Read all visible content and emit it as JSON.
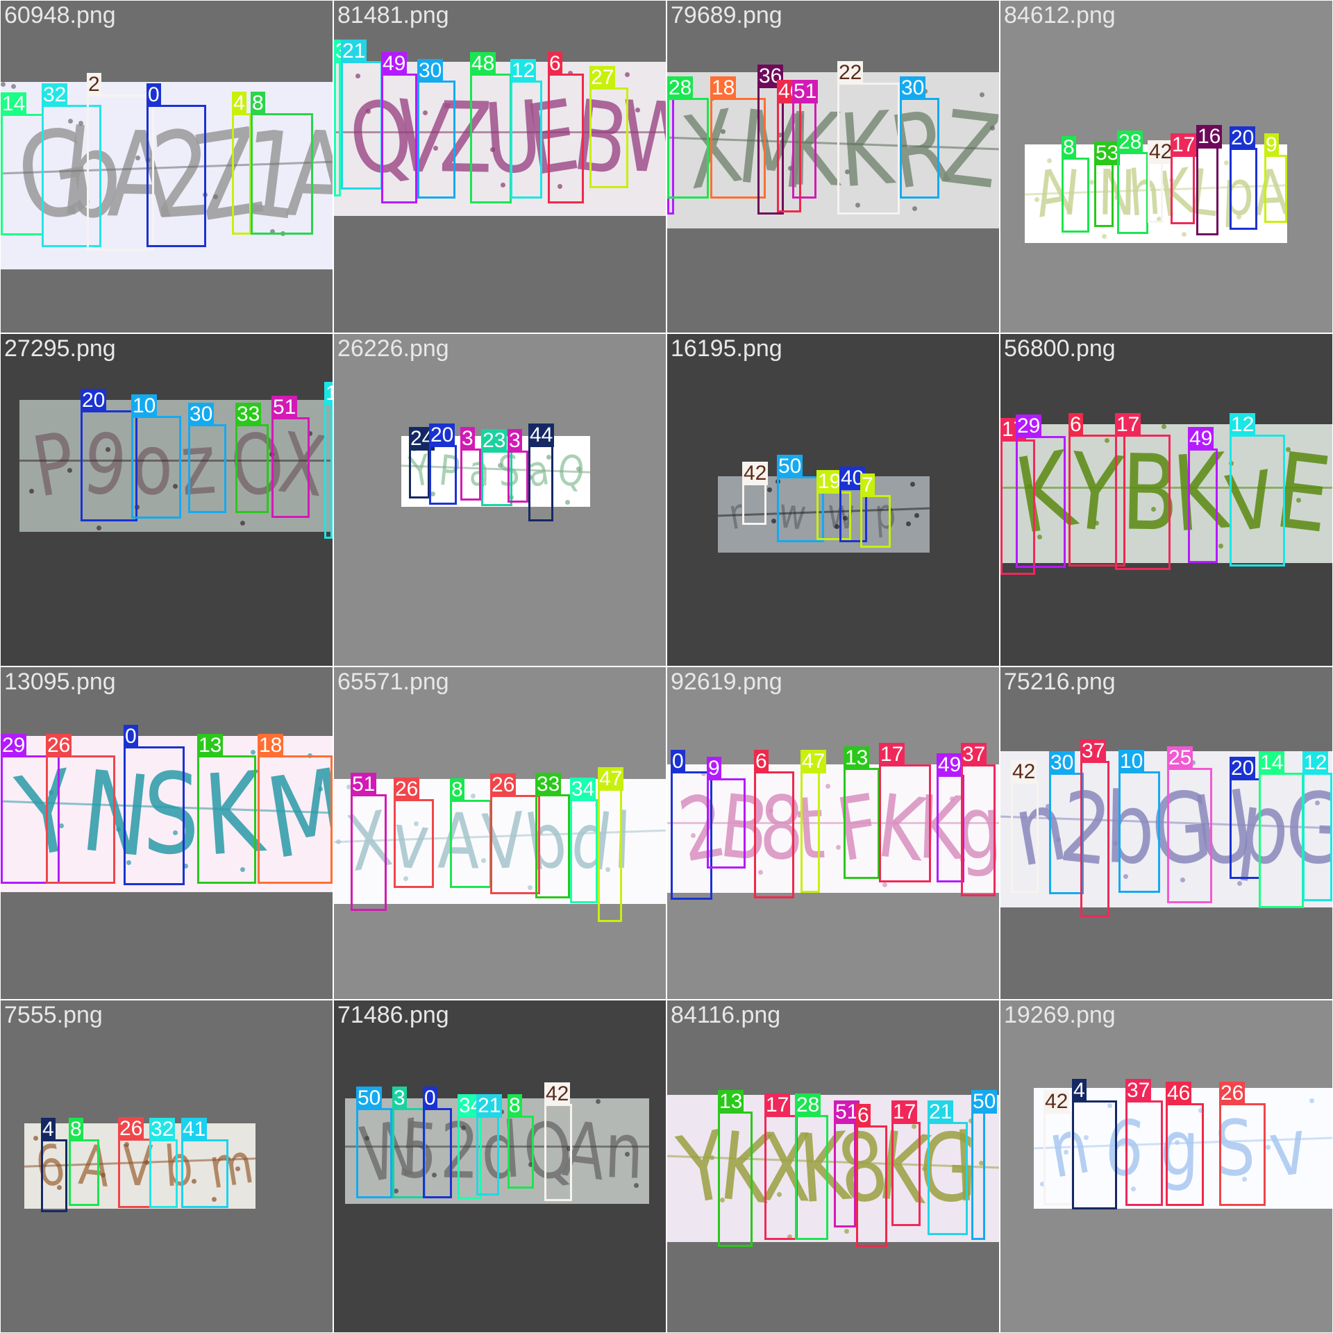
{
  "tiles": [
    {
      "name": "60948.png",
      "bg": "#6e6e6e",
      "stripColor": "#eeeefb",
      "text": "GbA2Z1A",
      "textColor": "#9a9a9a",
      "noise": "#6d6d6d",
      "boxes": [
        {
          "label": "14",
          "color": "#1aff85"
        },
        {
          "label": "32",
          "color": "#22e6e6"
        },
        {
          "label": "2",
          "color": "#f7f3ef",
          "dark": true
        },
        {
          "label": "0",
          "color": "#1a32d2"
        },
        {
          "label": "4",
          "color": "#c8f00c"
        },
        {
          "label": "8",
          "color": "#2ad54a"
        }
      ]
    },
    {
      "name": "81481.png",
      "bg": "#6e6e6e",
      "stripColor": "#ece8ec",
      "text": "QVZUEBW",
      "textColor": "#a0508c",
      "noise": "#8a3a70",
      "boxes": [
        {
          "label": "3",
          "color": "#1affb0"
        },
        {
          "label": "21",
          "color": "#22d6e6"
        },
        {
          "label": "49",
          "color": "#b41aff"
        },
        {
          "label": "30",
          "color": "#14aaf0"
        },
        {
          "label": "48",
          "color": "#1ae650"
        },
        {
          "label": "12",
          "color": "#1ae6e6"
        },
        {
          "label": "6",
          "color": "#f0284b"
        },
        {
          "label": "27",
          "color": "#c8f00c"
        }
      ]
    },
    {
      "name": "79689.png",
      "bg": "#6e6e6e",
      "stripColor": "#dcdcdc",
      "text": "XMKKRZ",
      "textColor": "#7a8a78",
      "noise": "#5a6a58",
      "boxes": [
        {
          "label": "29",
          "color": "#b41aff"
        },
        {
          "label": "28",
          "color": "#1ae650"
        },
        {
          "label": "18",
          "color": "#ff6e32"
        },
        {
          "label": "36",
          "color": "#6e0a5a"
        },
        {
          "label": "46",
          "color": "#f0284b"
        },
        {
          "label": "51",
          "color": "#d21ab4"
        },
        {
          "label": "22",
          "color": "#f7f3ef",
          "dark": true
        },
        {
          "label": "30",
          "color": "#14aaf0"
        }
      ]
    },
    {
      "name": "84612.png",
      "bg": "#8c8c8c",
      "stripColor": "#ffffff",
      "text": "AINhKLpA",
      "textColor": "#c8d496",
      "noise": "#c8d496",
      "boxes": [
        {
          "label": "8",
          "color": "#1ae650"
        },
        {
          "label": "53",
          "color": "#2ac81a"
        },
        {
          "label": "28",
          "color": "#1ae650"
        },
        {
          "label": "42",
          "color": "#f7f3ef",
          "dark": true
        },
        {
          "label": "17",
          "color": "#f0285a"
        },
        {
          "label": "16",
          "color": "#6e0a5a"
        },
        {
          "label": "20",
          "color": "#1a32d2"
        },
        {
          "label": "9",
          "color": "#c8f00c"
        }
      ]
    },
    {
      "name": "27295.png",
      "bg": "#424242",
      "stripColor": "#a0a8a4",
      "text": "P9ozOX",
      "textColor": "#7a6a70",
      "noise": "#3a2a30",
      "boxes": [
        {
          "label": "20",
          "color": "#1a32d2"
        },
        {
          "label": "10",
          "color": "#14aaf0"
        },
        {
          "label": "30",
          "color": "#14aaf0"
        },
        {
          "label": "33",
          "color": "#2ac81a"
        },
        {
          "label": "51",
          "color": "#d21ab4"
        },
        {
          "label": "1",
          "color": "#1ae6e6"
        }
      ]
    },
    {
      "name": "26226.png",
      "bg": "#8c8c8c",
      "stripColor": "#ffffff",
      "text": "YPaSaQ",
      "textColor": "#9ccaa8",
      "noise": "#7aa888",
      "boxes": [
        {
          "label": "24",
          "color": "#142864"
        },
        {
          "label": "20",
          "color": "#1a32d2"
        },
        {
          "label": "3",
          "color": "#d21ab4"
        },
        {
          "label": "23",
          "color": "#1ad2a0"
        },
        {
          "label": "3",
          "color": "#d21ab4"
        },
        {
          "label": "44",
          "color": "#142864"
        }
      ]
    },
    {
      "name": "16195.png",
      "bg": "#424242",
      "stripColor": "#9aa0a4",
      "text": "rwwp",
      "textColor": "#6a7074",
      "noise": "#202020",
      "boxes": [
        {
          "label": "42",
          "color": "#f7f3ef",
          "dark": true
        },
        {
          "label": "50",
          "color": "#14aaf0"
        },
        {
          "label": "19",
          "color": "#c8f00c"
        },
        {
          "label": "40",
          "color": "#1a32d2"
        },
        {
          "label": "7",
          "color": "#c8f00c"
        }
      ]
    },
    {
      "name": "56800.png",
      "bg": "#424242",
      "stripColor": "#cfd6cf",
      "text": "KYBKvE",
      "textColor": "#5a8a10",
      "noise": "#5a8a10",
      "boxes": [
        {
          "label": "17",
          "color": "#f0285a"
        },
        {
          "label": "29",
          "color": "#b41aff"
        },
        {
          "label": "6",
          "color": "#f0284b"
        },
        {
          "label": "17",
          "color": "#f0285a"
        },
        {
          "label": "49",
          "color": "#b41aff"
        },
        {
          "label": "12",
          "color": "#1ae6e6"
        }
      ]
    },
    {
      "name": "13095.png",
      "bg": "#6e6e6e",
      "stripColor": "#fbeef6",
      "text": "YNSKM",
      "textColor": "#2a9aa8",
      "noise": "#2a9aa8",
      "boxes": [
        {
          "label": "29",
          "color": "#b41aff"
        },
        {
          "label": "26",
          "color": "#f0464b"
        },
        {
          "label": "0",
          "color": "#1a32d2"
        },
        {
          "label": "13",
          "color": "#2ac81a"
        },
        {
          "label": "18",
          "color": "#ff6e32"
        }
      ]
    },
    {
      "name": "65571.png",
      "bg": "#8c8c8c",
      "stripColor": "#fbfbfd",
      "text": "XvAVbdl",
      "textColor": "#a6c4cc",
      "noise": "#a6c4cc",
      "boxes": [
        {
          "label": "51",
          "color": "#d21ab4"
        },
        {
          "label": "26",
          "color": "#f0464b"
        },
        {
          "label": "8",
          "color": "#1ae650"
        },
        {
          "label": "26",
          "color": "#f0464b"
        },
        {
          "label": "33",
          "color": "#2ac81a"
        },
        {
          "label": "34",
          "color": "#1affb0"
        },
        {
          "label": "47",
          "color": "#c8f00c"
        }
      ]
    },
    {
      "name": "92619.png",
      "bg": "#8c8c8c",
      "stripColor": "#fbf8fb",
      "text": "2B8tFKKg",
      "textColor": "#d890c0",
      "noise": "#d890c0",
      "boxes": [
        {
          "label": "0",
          "color": "#1a32d2"
        },
        {
          "label": "9",
          "color": "#b41aff"
        },
        {
          "label": "6",
          "color": "#f0284b"
        },
        {
          "label": "47",
          "color": "#c8f00c"
        },
        {
          "label": "13",
          "color": "#2ac81a"
        },
        {
          "label": "17",
          "color": "#f0285a"
        },
        {
          "label": "49",
          "color": "#b41aff"
        },
        {
          "label": "37",
          "color": "#f0285a"
        }
      ]
    },
    {
      "name": "75216.png",
      "bg": "#6e6e6e",
      "stripColor": "#efeef3",
      "text": "n2bGUpG",
      "textColor": "#8a88bc",
      "noise": "#8a88bc",
      "boxes": [
        {
          "label": "42",
          "color": "#f7f3ef",
          "dark": true
        },
        {
          "label": "30",
          "color": "#14aaf0"
        },
        {
          "label": "37",
          "color": "#f0285a"
        },
        {
          "label": "10",
          "color": "#14aaf0"
        },
        {
          "label": "25",
          "color": "#f05ad2"
        },
        {
          "label": "20",
          "color": "#1a32d2"
        },
        {
          "label": "14",
          "color": "#1aff85"
        },
        {
          "label": "12",
          "color": "#1ae6e6"
        }
      ]
    },
    {
      "name": "7555.png",
      "bg": "#6e6e6e",
      "stripColor": "#e8e6e0",
      "text": "6AVbm",
      "textColor": "#a87850",
      "noise": "#8a5030",
      "boxes": [
        {
          "label": "4",
          "color": "#142864"
        },
        {
          "label": "8",
          "color": "#1ae650"
        },
        {
          "label": "26",
          "color": "#f0464b"
        },
        {
          "label": "32",
          "color": "#22e6e6"
        },
        {
          "label": "41",
          "color": "#1ad2f0"
        }
      ]
    },
    {
      "name": "71486.png",
      "bg": "#424242",
      "stripColor": "#b4b8b4",
      "text": "W52dQAn",
      "textColor": "#707070",
      "noise": "#404040",
      "boxes": [
        {
          "label": "50",
          "color": "#14aaf0"
        },
        {
          "label": "3",
          "color": "#1ad2a0"
        },
        {
          "label": "0",
          "color": "#1a32d2"
        },
        {
          "label": "34",
          "color": "#1affb0"
        },
        {
          "label": "21",
          "color": "#22d6e6"
        },
        {
          "label": "8",
          "color": "#1ae650"
        },
        {
          "label": "42",
          "color": "#f7f3ef",
          "dark": true
        }
      ]
    },
    {
      "name": "84116.png",
      "bg": "#6e6e6e",
      "stripColor": "#eee6f0",
      "text": "YKXK8KGl",
      "textColor": "#9aa040",
      "noise": "#9aa040",
      "boxes": [
        {
          "label": "13",
          "color": "#2ac81a"
        },
        {
          "label": "17",
          "color": "#f0285a"
        },
        {
          "label": "28",
          "color": "#1ae650"
        },
        {
          "label": "51",
          "color": "#d21ab4"
        },
        {
          "label": "6",
          "color": "#f0284b"
        },
        {
          "label": "17",
          "color": "#f0285a"
        },
        {
          "label": "21",
          "color": "#22d6e6"
        },
        {
          "label": "50",
          "color": "#14aaf0"
        }
      ]
    },
    {
      "name": "19269.png",
      "bg": "#8c8c8c",
      "stripColor": "#fbfcff",
      "text": "n6gSv",
      "textColor": "#a8c8f0",
      "noise": "#a8c8f0",
      "boxes": [
        {
          "label": "42",
          "color": "#f7f3ef",
          "dark": true
        },
        {
          "label": "4",
          "color": "#142864"
        },
        {
          "label": "37",
          "color": "#f0285a"
        },
        {
          "label": "46",
          "color": "#f0284b"
        },
        {
          "label": "26",
          "color": "#f0464b"
        }
      ]
    }
  ]
}
